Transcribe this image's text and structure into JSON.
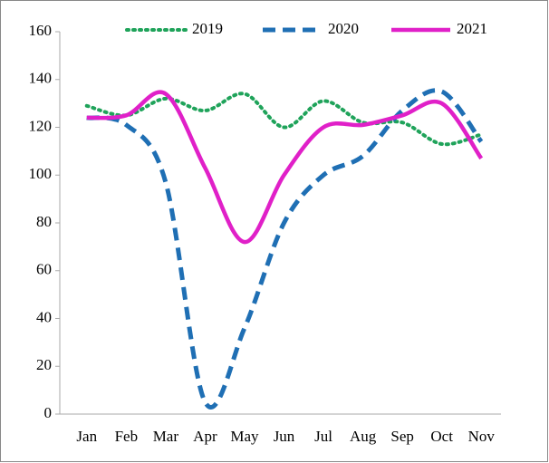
{
  "chart_data": {
    "type": "line",
    "categories": [
      "Jan",
      "Feb",
      "Mar",
      "Apr",
      "May",
      "Jun",
      "Jul",
      "Aug",
      "Sep",
      "Oct",
      "Nov"
    ],
    "series": [
      {
        "name": "2019",
        "color": "#1fa35a",
        "line_style": "dotted",
        "values": [
          129,
          125,
          132,
          127,
          134,
          120,
          131,
          122,
          122,
          113,
          117
        ]
      },
      {
        "name": "2020",
        "color": "#1f6fb4",
        "line_style": "dashed",
        "values": [
          124,
          121,
          97,
          5,
          36,
          80,
          100,
          108,
          127,
          135,
          114
        ]
      },
      {
        "name": "2021",
        "color": "#e020c8",
        "line_style": "solid",
        "values": [
          124,
          125,
          134,
          103,
          72,
          100,
          120,
          121,
          125,
          130,
          107
        ]
      }
    ],
    "ylim": [
      0,
      160
    ],
    "yticks": [
      0,
      20,
      40,
      60,
      80,
      100,
      120,
      140,
      160
    ],
    "grid": false,
    "legend": "top"
  }
}
